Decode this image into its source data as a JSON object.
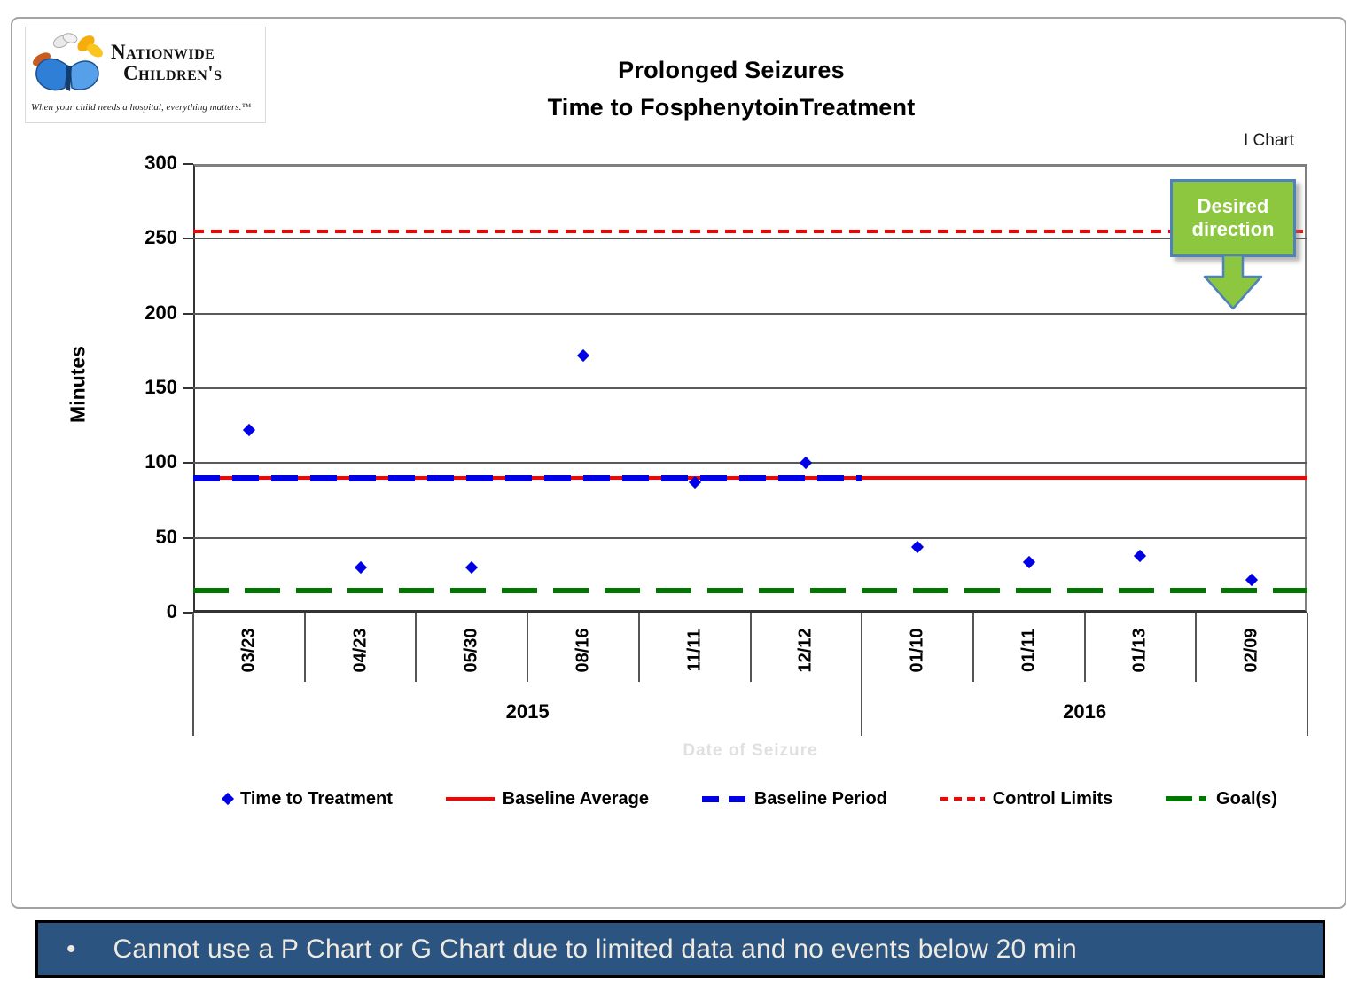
{
  "logo": {
    "name_line1": "Nationwide",
    "name_line2": "Children's",
    "tagline": "When your child needs a hospital, everything matters.™"
  },
  "header": {
    "title_line1": "Prolonged Seizures",
    "title_line2": "Time to FosphenytoinTreatment",
    "chart_type_label": "I Chart"
  },
  "callout": {
    "line1": "Desired",
    "line2": "direction",
    "fill_color": "#8dc63f",
    "border_color": "#4f81bd"
  },
  "chart_data": {
    "type": "scatter",
    "title": "Prolonged Seizures Time to FosphenytoinTreatment",
    "ylabel": "Minutes",
    "xlabel": "Date of Seizure",
    "ylim": [
      0,
      300
    ],
    "yticks": [
      0,
      50,
      100,
      150,
      200,
      250,
      300
    ],
    "grid": true,
    "categories": [
      "03/23",
      "04/23",
      "05/30",
      "08/16",
      "11/11",
      "12/12",
      "01/10",
      "01/11",
      "01/13",
      "02/09"
    ],
    "year_groups": [
      {
        "label": "2015",
        "span": 6
      },
      {
        "label": "2016",
        "span": 4
      }
    ],
    "series": [
      {
        "name": "Time to Treatment",
        "marker": "diamond",
        "color": "#0000e6",
        "values": [
          122,
          30,
          30,
          172,
          87,
          100,
          44,
          34,
          38,
          22
        ]
      }
    ],
    "reference_lines": [
      {
        "name": "Baseline Average",
        "value": 90,
        "style": "solid",
        "color": "#ff0000",
        "span": "full"
      },
      {
        "name": "Baseline Period",
        "value": 90,
        "style": "dashed",
        "color": "#0000e6",
        "span": "2015"
      },
      {
        "name": "Control Limits",
        "value": 255,
        "style": "dotted",
        "color": "#ff0000",
        "span": "full"
      },
      {
        "name": "Goal(s)",
        "value": 15,
        "style": "long-dash",
        "color": "#007800",
        "span": "full"
      }
    ],
    "legend_position": "bottom"
  },
  "legend": {
    "items": [
      {
        "label": "Time to Treatment"
      },
      {
        "label": "Baseline Average"
      },
      {
        "label": "Baseline Period"
      },
      {
        "label": "Control Limits"
      },
      {
        "label": "Goal(s)"
      }
    ]
  },
  "footer_note": {
    "bullet": "•",
    "text": "Cannot use a P Chart or G Chart due to limited data and no events below 20 min",
    "bg_color": "#2b5480"
  }
}
